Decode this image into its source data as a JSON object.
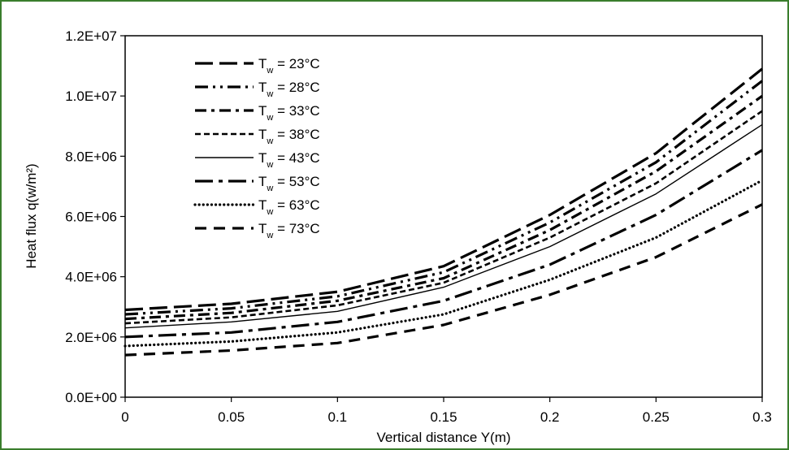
{
  "chart_data": {
    "type": "line",
    "xlabel": "Vertical distance Y(m)",
    "ylabel": "Heat flux q(w/m²)",
    "xlim": [
      0,
      0.3
    ],
    "ylim": [
      0,
      12000000
    ],
    "x_tick_labels": [
      "0",
      "0.05",
      "0.1",
      "0.15",
      "0.2",
      "0.25",
      "0.3"
    ],
    "y_tick_labels": [
      "0.0E+00",
      "2.0E+06",
      "4.0E+06",
      "6.0E+06",
      "8.0E+06",
      "1.0E+07",
      "1.2E+07"
    ],
    "grid": false,
    "legend_position": "top-left",
    "x": [
      0,
      0.05,
      0.1,
      0.15,
      0.2,
      0.25,
      0.3
    ],
    "series": [
      {
        "name_main": "T",
        "name_sub": "w",
        "name_rest": " = 23°C",
        "dash": "long-dash",
        "values": [
          2900000,
          3100000,
          3500000,
          4350000,
          6050000,
          8100000,
          10900000
        ]
      },
      {
        "name_main": "T",
        "name_sub": "w",
        "name_rest": " = 28°C",
        "dash": "dash-dot-dot",
        "values": [
          2750000,
          2950000,
          3350000,
          4150000,
          5800000,
          7800000,
          10500000
        ]
      },
      {
        "name_main": "T",
        "name_sub": "w",
        "name_rest": " = 33°C",
        "dash": "dash-dot",
        "values": [
          2600000,
          2800000,
          3200000,
          3950000,
          5550000,
          7500000,
          10000000
        ]
      },
      {
        "name_main": "T",
        "name_sub": "w",
        "name_rest": " = 38°C",
        "dash": "short-dash",
        "values": [
          2450000,
          2650000,
          3050000,
          3800000,
          5300000,
          7100000,
          9500000
        ]
      },
      {
        "name_main": "T",
        "name_sub": "w",
        "name_rest": " = 43°C",
        "dash": "solid",
        "values": [
          2300000,
          2500000,
          2850000,
          3650000,
          5000000,
          6750000,
          9050000
        ]
      },
      {
        "name_main": "T",
        "name_sub": "w",
        "name_rest": " = 53°C",
        "dash": "long-dash-dot",
        "values": [
          2000000,
          2150000,
          2500000,
          3200000,
          4400000,
          6050000,
          8200000
        ]
      },
      {
        "name_main": "T",
        "name_sub": "w",
        "name_rest": " = 63°C",
        "dash": "dotted",
        "values": [
          1700000,
          1850000,
          2150000,
          2750000,
          3900000,
          5300000,
          7200000
        ]
      },
      {
        "name_main": "T",
        "name_sub": "w",
        "name_rest": " = 73°C",
        "dash": "dash",
        "values": [
          1400000,
          1550000,
          1800000,
          2400000,
          3400000,
          4650000,
          6400000
        ]
      }
    ]
  }
}
